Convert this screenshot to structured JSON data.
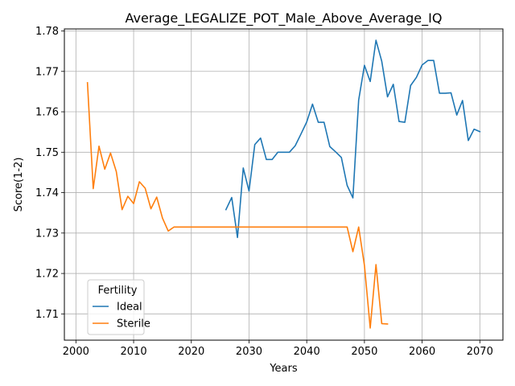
{
  "chart_data": {
    "type": "line",
    "title": "Average_LEGALIZE_POT_Male_Above_Average_IQ",
    "xlabel": "Years",
    "ylabel": "Score(1-2)",
    "xlim": [
      1998,
      2074
    ],
    "ylim": [
      1.7035,
      1.7805
    ],
    "xticks": [
      2000,
      2010,
      2020,
      2030,
      2040,
      2050,
      2060,
      2070
    ],
    "yticks": [
      1.71,
      1.72,
      1.73,
      1.74,
      1.75,
      1.76,
      1.77,
      1.78
    ],
    "ytick_labels": [
      "1.71",
      "1.72",
      "1.73",
      "1.74",
      "1.75",
      "1.76",
      "1.77",
      "1.78"
    ],
    "grid": true,
    "legend": {
      "title": "Fertility",
      "placement": "lower-left"
    },
    "series": [
      {
        "name": "Ideal",
        "color": "#1f77b4",
        "x": [
          2026,
          2027,
          2028,
          2029,
          2030,
          2031,
          2032,
          2033,
          2034,
          2035,
          2036,
          2037,
          2038,
          2039,
          2040,
          2041,
          2042,
          2043,
          2044,
          2045,
          2046,
          2047,
          2048,
          2049,
          2050,
          2051,
          2052,
          2053,
          2054,
          2055,
          2056,
          2057,
          2058,
          2059,
          2060,
          2061,
          2062,
          2063,
          2064,
          2065,
          2066,
          2067,
          2068,
          2069,
          2070
        ],
        "y": [
          1.7358,
          1.7388,
          1.7289,
          1.7461,
          1.7404,
          1.7519,
          1.7535,
          1.7482,
          1.7482,
          1.75,
          1.75,
          1.75,
          1.7516,
          1.7545,
          1.7575,
          1.7619,
          1.7574,
          1.7574,
          1.7514,
          1.7501,
          1.7487,
          1.7418,
          1.7387,
          1.7629,
          1.7715,
          1.7675,
          1.7777,
          1.7725,
          1.7637,
          1.7668,
          1.7576,
          1.7574,
          1.7665,
          1.7685,
          1.7716,
          1.7727,
          1.7727,
          1.7646,
          1.7646,
          1.7647,
          1.7592,
          1.7628,
          1.7529,
          1.7557,
          1.7551
        ]
      },
      {
        "name": "Sterile",
        "color": "#ff7f0e",
        "x": [
          2002,
          2003,
          2004,
          2005,
          2006,
          2007,
          2008,
          2009,
          2010,
          2011,
          2012,
          2013,
          2014,
          2015,
          2016,
          2017,
          2018,
          2019,
          2020,
          2021,
          2022,
          2023,
          2024,
          2025,
          2026,
          2027,
          2028,
          2029,
          2030,
          2031,
          2032,
          2033,
          2034,
          2035,
          2036,
          2037,
          2038,
          2039,
          2040,
          2041,
          2042,
          2043,
          2044,
          2045,
          2046,
          2047,
          2048,
          2049,
          2050,
          2051,
          2052,
          2053,
          2054
        ],
        "y": [
          1.7672,
          1.741,
          1.7515,
          1.7458,
          1.7498,
          1.7452,
          1.7358,
          1.7391,
          1.7373,
          1.7427,
          1.7411,
          1.736,
          1.7389,
          1.7337,
          1.7305,
          1.7315,
          1.7315,
          1.7315,
          1.7315,
          1.7315,
          1.7315,
          1.7315,
          1.7315,
          1.7315,
          1.7315,
          1.7315,
          1.7315,
          1.7315,
          1.7315,
          1.7315,
          1.7315,
          1.7315,
          1.7315,
          1.7315,
          1.7315,
          1.7315,
          1.7315,
          1.7315,
          1.7315,
          1.7315,
          1.7315,
          1.7315,
          1.7315,
          1.7315,
          1.7315,
          1.7315,
          1.7254,
          1.7315,
          1.722,
          1.7065,
          1.7222,
          1.7076,
          1.7075
        ]
      }
    ]
  }
}
